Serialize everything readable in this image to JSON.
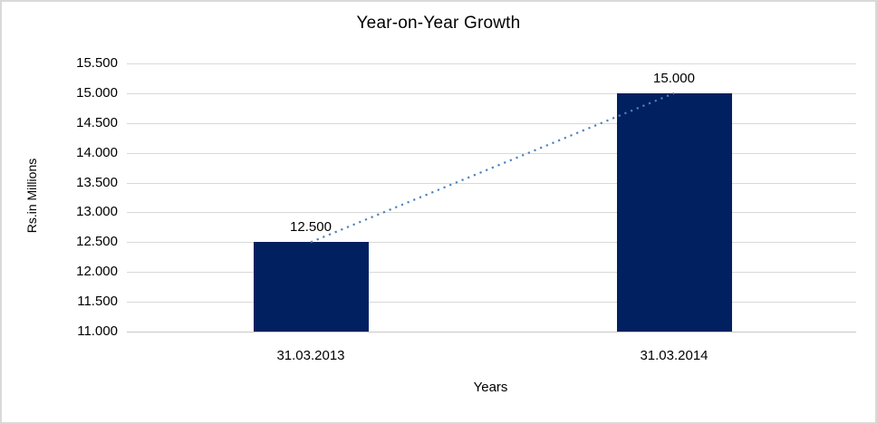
{
  "chart_data": {
    "type": "bar",
    "title": "Year-on-Year Growth",
    "xlabel": "Years",
    "ylabel": "Rs.in Millions",
    "categories": [
      "31.03.2013",
      "31.03.2014"
    ],
    "values": [
      12500,
      15000
    ],
    "data_labels": [
      "12.500",
      "15.000"
    ],
    "ylim": [
      11000,
      15500
    ],
    "ytick_step": 500,
    "ytick_labels": [
      "11.000",
      "11.500",
      "12.000",
      "12.500",
      "13.000",
      "13.500",
      "14.000",
      "14.500",
      "15.000",
      "15.500"
    ],
    "grid": true,
    "legend": "none",
    "trendline": {
      "style": "dotted",
      "from_value": 12500,
      "to_value": 15000,
      "color": "#4f81bd"
    },
    "colors": {
      "bar": "#002060",
      "gridline": "#d9d9d9",
      "axis_line": "#c6c6c6",
      "text": "#000000",
      "background": "#ffffff",
      "border": "#d9d9d9"
    }
  }
}
